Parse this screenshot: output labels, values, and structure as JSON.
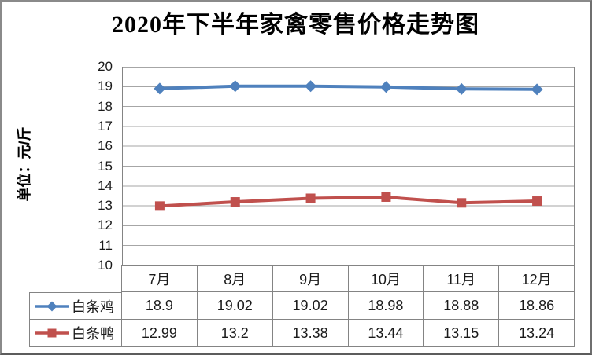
{
  "chart_data": {
    "type": "line",
    "title": "2020年下半年家禽零售价格走势图",
    "ylabel": "单位：元/斤",
    "categories": [
      "7月",
      "8月",
      "9月",
      "10月",
      "11月",
      "12月"
    ],
    "series": [
      {
        "name": "白条鸡",
        "values": [
          18.9,
          19.02,
          19.02,
          18.98,
          18.88,
          18.86
        ],
        "color": "#4F81BD",
        "marker": "diamond"
      },
      {
        "name": "白条鸭",
        "values": [
          12.99,
          13.2,
          13.38,
          13.44,
          13.15,
          13.24
        ],
        "color": "#C0504D",
        "marker": "square"
      }
    ],
    "ylim": [
      10,
      20
    ],
    "ytick_step": 1,
    "grid": true,
    "legend_position": "table-left",
    "gridline_color": "#A6A6A6",
    "axis_border_color": "#848484"
  }
}
